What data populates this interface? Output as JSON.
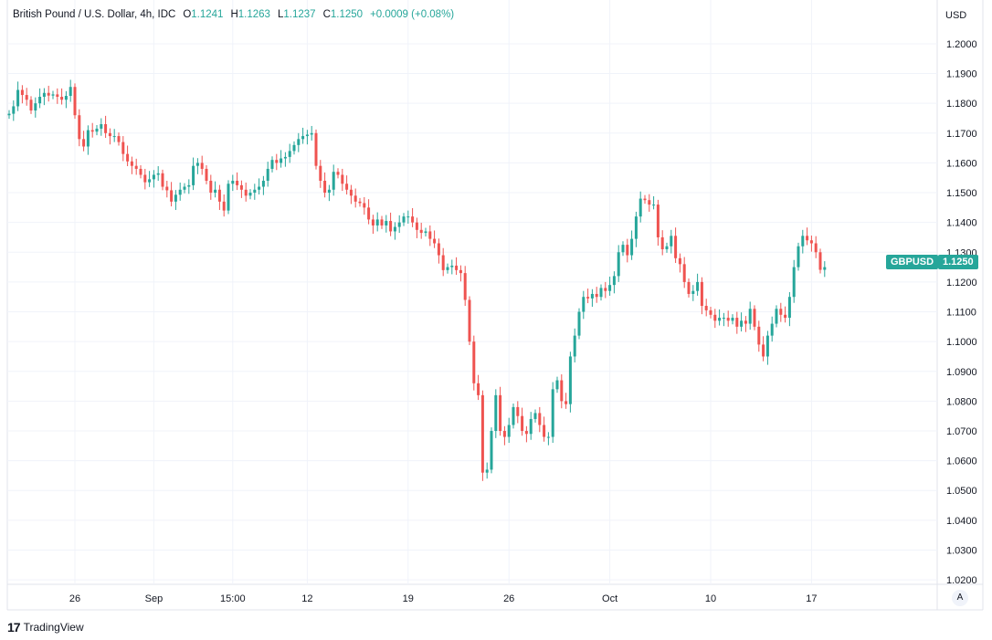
{
  "header": {
    "symbol": "British Pound / U.S. Dollar, 4h, IDC",
    "open_label": "O",
    "open": "1.1241",
    "high_label": "H",
    "high": "1.1263",
    "low_label": "L",
    "low": "1.1237",
    "close_label": "C",
    "close": "1.1250",
    "change": "+0.0009 (+0.08%)"
  },
  "currency_label": "USD",
  "price_tag": {
    "symbol": "GBPUSD",
    "price": "1.1250"
  },
  "autoscale_label": "A",
  "footer": {
    "brand": "TradingView"
  },
  "colors": {
    "up": "#26a69a",
    "down": "#ef5350",
    "grid": "#f0f3fa",
    "axis": "#e0e3eb"
  },
  "chart_data": {
    "type": "candlestick",
    "title": "British Pound / U.S. Dollar, 4h, IDC",
    "ylim": [
      1.0185,
      1.2055
    ],
    "y_ticks": [
      "1.0200",
      "1.0300",
      "1.0400",
      "1.0500",
      "1.0600",
      "1.0700",
      "1.0800",
      "1.0900",
      "1.1000",
      "1.1100",
      "1.1200",
      "1.1300",
      "1.1400",
      "1.1500",
      "1.1600",
      "1.1700",
      "1.1800",
      "1.1900",
      "1.2000"
    ],
    "x_ticks": [
      {
        "label": "26",
        "bar": 15
      },
      {
        "label": "Sep",
        "bar": 33
      },
      {
        "label": "15:00",
        "bar": 51
      },
      {
        "label": "12",
        "bar": 68
      },
      {
        "label": "19",
        "bar": 91
      },
      {
        "label": "26",
        "bar": 114
      },
      {
        "label": "Oct",
        "bar": 137
      },
      {
        "label": "10",
        "bar": 160
      },
      {
        "label": "17",
        "bar": 183
      }
    ],
    "last_price": 1.125,
    "closes": [
      1.1765,
      1.179,
      1.1845,
      1.1828,
      1.1812,
      1.1776,
      1.18,
      1.1822,
      1.1835,
      1.1826,
      1.183,
      1.1822,
      1.1812,
      1.1825,
      1.1855,
      1.176,
      1.168,
      1.1655,
      1.171,
      1.1705,
      1.1715,
      1.173,
      1.17,
      1.169,
      1.169,
      1.167,
      1.163,
      1.1605,
      1.159,
      1.158,
      1.156,
      1.1535,
      1.1545,
      1.156,
      1.1565,
      1.152,
      1.1508,
      1.147,
      1.1493,
      1.151,
      1.152,
      1.1525,
      1.159,
      1.16,
      1.158,
      1.154,
      1.15,
      1.151,
      1.147,
      1.144,
      1.153,
      1.154,
      1.1525,
      1.151,
      1.149,
      1.15,
      1.151,
      1.152,
      1.154,
      1.158,
      1.161,
      1.16,
      1.1615,
      1.162,
      1.164,
      1.166,
      1.168,
      1.169,
      1.1695,
      1.17,
      1.159,
      1.154,
      1.15,
      1.151,
      1.157,
      1.156,
      1.153,
      1.151,
      1.149,
      1.147,
      1.1465,
      1.145,
      1.141,
      1.139,
      1.141,
      1.139,
      1.1405,
      1.137,
      1.1385,
      1.14,
      1.142,
      1.142,
      1.14,
      1.1375,
      1.1365,
      1.137,
      1.1345,
      1.133,
      1.129,
      1.124,
      1.125,
      1.1255,
      1.124,
      1.123,
      1.114,
      1.1,
      1.086,
      1.082,
      1.056,
      1.057,
      1.07,
      1.082,
      1.07,
      1.068,
      1.072,
      1.078,
      1.075,
      1.07,
      1.069,
      1.074,
      1.076,
      1.072,
      1.068,
      1.068,
      1.084,
      1.087,
      1.08,
      1.079,
      1.095,
      1.102,
      1.11,
      1.115,
      1.1145,
      1.116,
      1.115,
      1.118,
      1.117,
      1.119,
      1.122,
      1.13,
      1.1325,
      1.129,
      1.1345,
      1.142,
      1.148,
      1.1475,
      1.146,
      1.146,
      1.135,
      1.131,
      1.132,
      1.1355,
      1.128,
      1.126,
      1.12,
      1.116,
      1.117,
      1.12,
      1.112,
      1.1105,
      1.109,
      1.107,
      1.108,
      1.108,
      1.107,
      1.108,
      1.105,
      1.107,
      1.106,
      1.111,
      1.105,
      1.099,
      1.095,
      1.102,
      1.106,
      1.111,
      1.109,
      1.108,
      1.115,
      1.125,
      1.132,
      1.1355,
      1.134,
      1.133,
      1.13,
      1.1241,
      1.125
    ],
    "open_first": 1.176
  }
}
